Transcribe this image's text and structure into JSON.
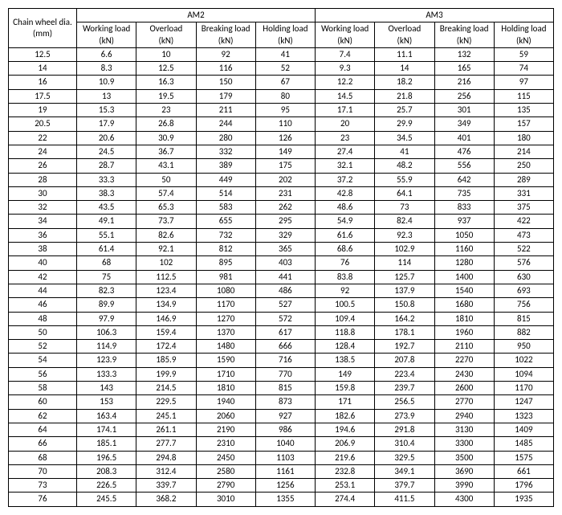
{
  "header": {
    "dia_line1": "Chain wheel dia.",
    "dia_line2": "(mm)",
    "group_am2": "AM2",
    "group_am3": "AM3",
    "sub": {
      "working_line1": "Working load",
      "overload_line1": "Overload",
      "breaking_line1": "Breaking load",
      "holding_line1": "Holding load",
      "unit": "(kN)"
    }
  },
  "rows": [
    {
      "dia": "12.5",
      "am2_w": "6.6",
      "am2_o": "10",
      "am2_b": "92",
      "am2_h": "41",
      "am3_w": "7.4",
      "am3_o": "11.1",
      "am3_b": "132",
      "am3_h": "59"
    },
    {
      "dia": "14",
      "am2_w": "8.3",
      "am2_o": "12.5",
      "am2_b": "116",
      "am2_h": "52",
      "am3_w": "9.3",
      "am3_o": "14",
      "am3_b": "165",
      "am3_h": "74"
    },
    {
      "dia": "16",
      "am2_w": "10.9",
      "am2_o": "16.3",
      "am2_b": "150",
      "am2_h": "67",
      "am3_w": "12.2",
      "am3_o": "18.2",
      "am3_b": "216",
      "am3_h": "97"
    },
    {
      "dia": "17.5",
      "am2_w": "13",
      "am2_o": "19.5",
      "am2_b": "179",
      "am2_h": "80",
      "am3_w": "14.5",
      "am3_o": "21.8",
      "am3_b": "256",
      "am3_h": "115"
    },
    {
      "dia": "19",
      "am2_w": "15.3",
      "am2_o": "23",
      "am2_b": "211",
      "am2_h": "95",
      "am3_w": "17.1",
      "am3_o": "25.7",
      "am3_b": "301",
      "am3_h": "135"
    },
    {
      "dia": "20.5",
      "am2_w": "17.9",
      "am2_o": "26.8",
      "am2_b": "244",
      "am2_h": "110",
      "am3_w": "20",
      "am3_o": "29.9",
      "am3_b": "349",
      "am3_h": "157"
    },
    {
      "dia": "22",
      "am2_w": "20.6",
      "am2_o": "30.9",
      "am2_b": "280",
      "am2_h": "126",
      "am3_w": "23",
      "am3_o": "34.5",
      "am3_b": "401",
      "am3_h": "180"
    },
    {
      "dia": "24",
      "am2_w": "24.5",
      "am2_o": "36.7",
      "am2_b": "332",
      "am2_h": "149",
      "am3_w": "27.4",
      "am3_o": "41",
      "am3_b": "476",
      "am3_h": "214"
    },
    {
      "dia": "26",
      "am2_w": "28.7",
      "am2_o": "43.1",
      "am2_b": "389",
      "am2_h": "175",
      "am3_w": "32.1",
      "am3_o": "48.2",
      "am3_b": "556",
      "am3_h": "250"
    },
    {
      "dia": "28",
      "am2_w": "33.3",
      "am2_o": "50",
      "am2_b": "449",
      "am2_h": "202",
      "am3_w": "37.2",
      "am3_o": "55.9",
      "am3_b": "642",
      "am3_h": "289"
    },
    {
      "dia": "30",
      "am2_w": "38.3",
      "am2_o": "57.4",
      "am2_b": "514",
      "am2_h": "231",
      "am3_w": "42.8",
      "am3_o": "64.1",
      "am3_b": "735",
      "am3_h": "331"
    },
    {
      "dia": "32",
      "am2_w": "43.5",
      "am2_o": "65.3",
      "am2_b": "583",
      "am2_h": "262",
      "am3_w": "48.6",
      "am3_o": "73",
      "am3_b": "833",
      "am3_h": "375"
    },
    {
      "dia": "34",
      "am2_w": "49.1",
      "am2_o": "73.7",
      "am2_b": "655",
      "am2_h": "295",
      "am3_w": "54.9",
      "am3_o": "82.4",
      "am3_b": "937",
      "am3_h": "422"
    },
    {
      "dia": "36",
      "am2_w": "55.1",
      "am2_o": "82.6",
      "am2_b": "732",
      "am2_h": "329",
      "am3_w": "61.6",
      "am3_o": "92.3",
      "am3_b": "1050",
      "am3_h": "473"
    },
    {
      "dia": "38",
      "am2_w": "61.4",
      "am2_o": "92.1",
      "am2_b": "812",
      "am2_h": "365",
      "am3_w": "68.6",
      "am3_o": "102.9",
      "am3_b": "1160",
      "am3_h": "522"
    },
    {
      "dia": "40",
      "am2_w": "68",
      "am2_o": "102",
      "am2_b": "895",
      "am2_h": "403",
      "am3_w": "76",
      "am3_o": "114",
      "am3_b": "1280",
      "am3_h": "576"
    },
    {
      "dia": "42",
      "am2_w": "75",
      "am2_o": "112.5",
      "am2_b": "981",
      "am2_h": "441",
      "am3_w": "83.8",
      "am3_o": "125.7",
      "am3_b": "1400",
      "am3_h": "630"
    },
    {
      "dia": "44",
      "am2_w": "82.3",
      "am2_o": "123.4",
      "am2_b": "1080",
      "am2_h": "486",
      "am3_w": "92",
      "am3_o": "137.9",
      "am3_b": "1540",
      "am3_h": "693"
    },
    {
      "dia": "46",
      "am2_w": "89.9",
      "am2_o": "134.9",
      "am2_b": "1170",
      "am2_h": "527",
      "am3_w": "100.5",
      "am3_o": "150.8",
      "am3_b": "1680",
      "am3_h": "756"
    },
    {
      "dia": "48",
      "am2_w": "97.9",
      "am2_o": "146.9",
      "am2_b": "1270",
      "am2_h": "572",
      "am3_w": "109.4",
      "am3_o": "164.2",
      "am3_b": "1810",
      "am3_h": "815"
    },
    {
      "dia": "50",
      "am2_w": "106.3",
      "am2_o": "159.4",
      "am2_b": "1370",
      "am2_h": "617",
      "am3_w": "118.8",
      "am3_o": "178.1",
      "am3_b": "1960",
      "am3_h": "882"
    },
    {
      "dia": "52",
      "am2_w": "114.9",
      "am2_o": "172.4",
      "am2_b": "1480",
      "am2_h": "666",
      "am3_w": "128.4",
      "am3_o": "192.7",
      "am3_b": "2110",
      "am3_h": "950"
    },
    {
      "dia": "54",
      "am2_w": "123.9",
      "am2_o": "185.9",
      "am2_b": "1590",
      "am2_h": "716",
      "am3_w": "138.5",
      "am3_o": "207.8",
      "am3_b": "2270",
      "am3_h": "1022"
    },
    {
      "dia": "56",
      "am2_w": "133.3",
      "am2_o": "199.9",
      "am2_b": "1710",
      "am2_h": "770",
      "am3_w": "149",
      "am3_o": "223.4",
      "am3_b": "2430",
      "am3_h": "1094"
    },
    {
      "dia": "58",
      "am2_w": "143",
      "am2_o": "214.5",
      "am2_b": "1810",
      "am2_h": "815",
      "am3_w": "159.8",
      "am3_o": "239.7",
      "am3_b": "2600",
      "am3_h": "1170"
    },
    {
      "dia": "60",
      "am2_w": "153",
      "am2_o": "229.5",
      "am2_b": "1940",
      "am2_h": "873",
      "am3_w": "171",
      "am3_o": "256.5",
      "am3_b": "2770",
      "am3_h": "1247"
    },
    {
      "dia": "62",
      "am2_w": "163.4",
      "am2_o": "245.1",
      "am2_b": "2060",
      "am2_h": "927",
      "am3_w": "182.6",
      "am3_o": "273.9",
      "am3_b": "2940",
      "am3_h": "1323"
    },
    {
      "dia": "64",
      "am2_w": "174.1",
      "am2_o": "261.1",
      "am2_b": "2190",
      "am2_h": "986",
      "am3_w": "194.6",
      "am3_o": "291.8",
      "am3_b": "3130",
      "am3_h": "1409"
    },
    {
      "dia": "66",
      "am2_w": "185.1",
      "am2_o": "277.7",
      "am2_b": "2310",
      "am2_h": "1040",
      "am3_w": "206.9",
      "am3_o": "310.4",
      "am3_b": "3300",
      "am3_h": "1485"
    },
    {
      "dia": "68",
      "am2_w": "196.5",
      "am2_o": "294.8",
      "am2_b": "2450",
      "am2_h": "1103",
      "am3_w": "219.6",
      "am3_o": "329.5",
      "am3_b": "3500",
      "am3_h": "1575"
    },
    {
      "dia": "70",
      "am2_w": "208.3",
      "am2_o": "312.4",
      "am2_b": "2580",
      "am2_h": "1161",
      "am3_w": "232.8",
      "am3_o": "349.1",
      "am3_b": "3690",
      "am3_h": "661"
    },
    {
      "dia": "73",
      "am2_w": "226.5",
      "am2_o": "339.7",
      "am2_b": "2790",
      "am2_h": "1256",
      "am3_w": "253.1",
      "am3_o": "379.7",
      "am3_b": "3990",
      "am3_h": "1796"
    },
    {
      "dia": "76",
      "am2_w": "245.5",
      "am2_o": "368.2",
      "am2_b": "3010",
      "am2_h": "1355",
      "am3_w": "274.4",
      "am3_o": "411.5",
      "am3_b": "4300",
      "am3_h": "1935"
    }
  ]
}
